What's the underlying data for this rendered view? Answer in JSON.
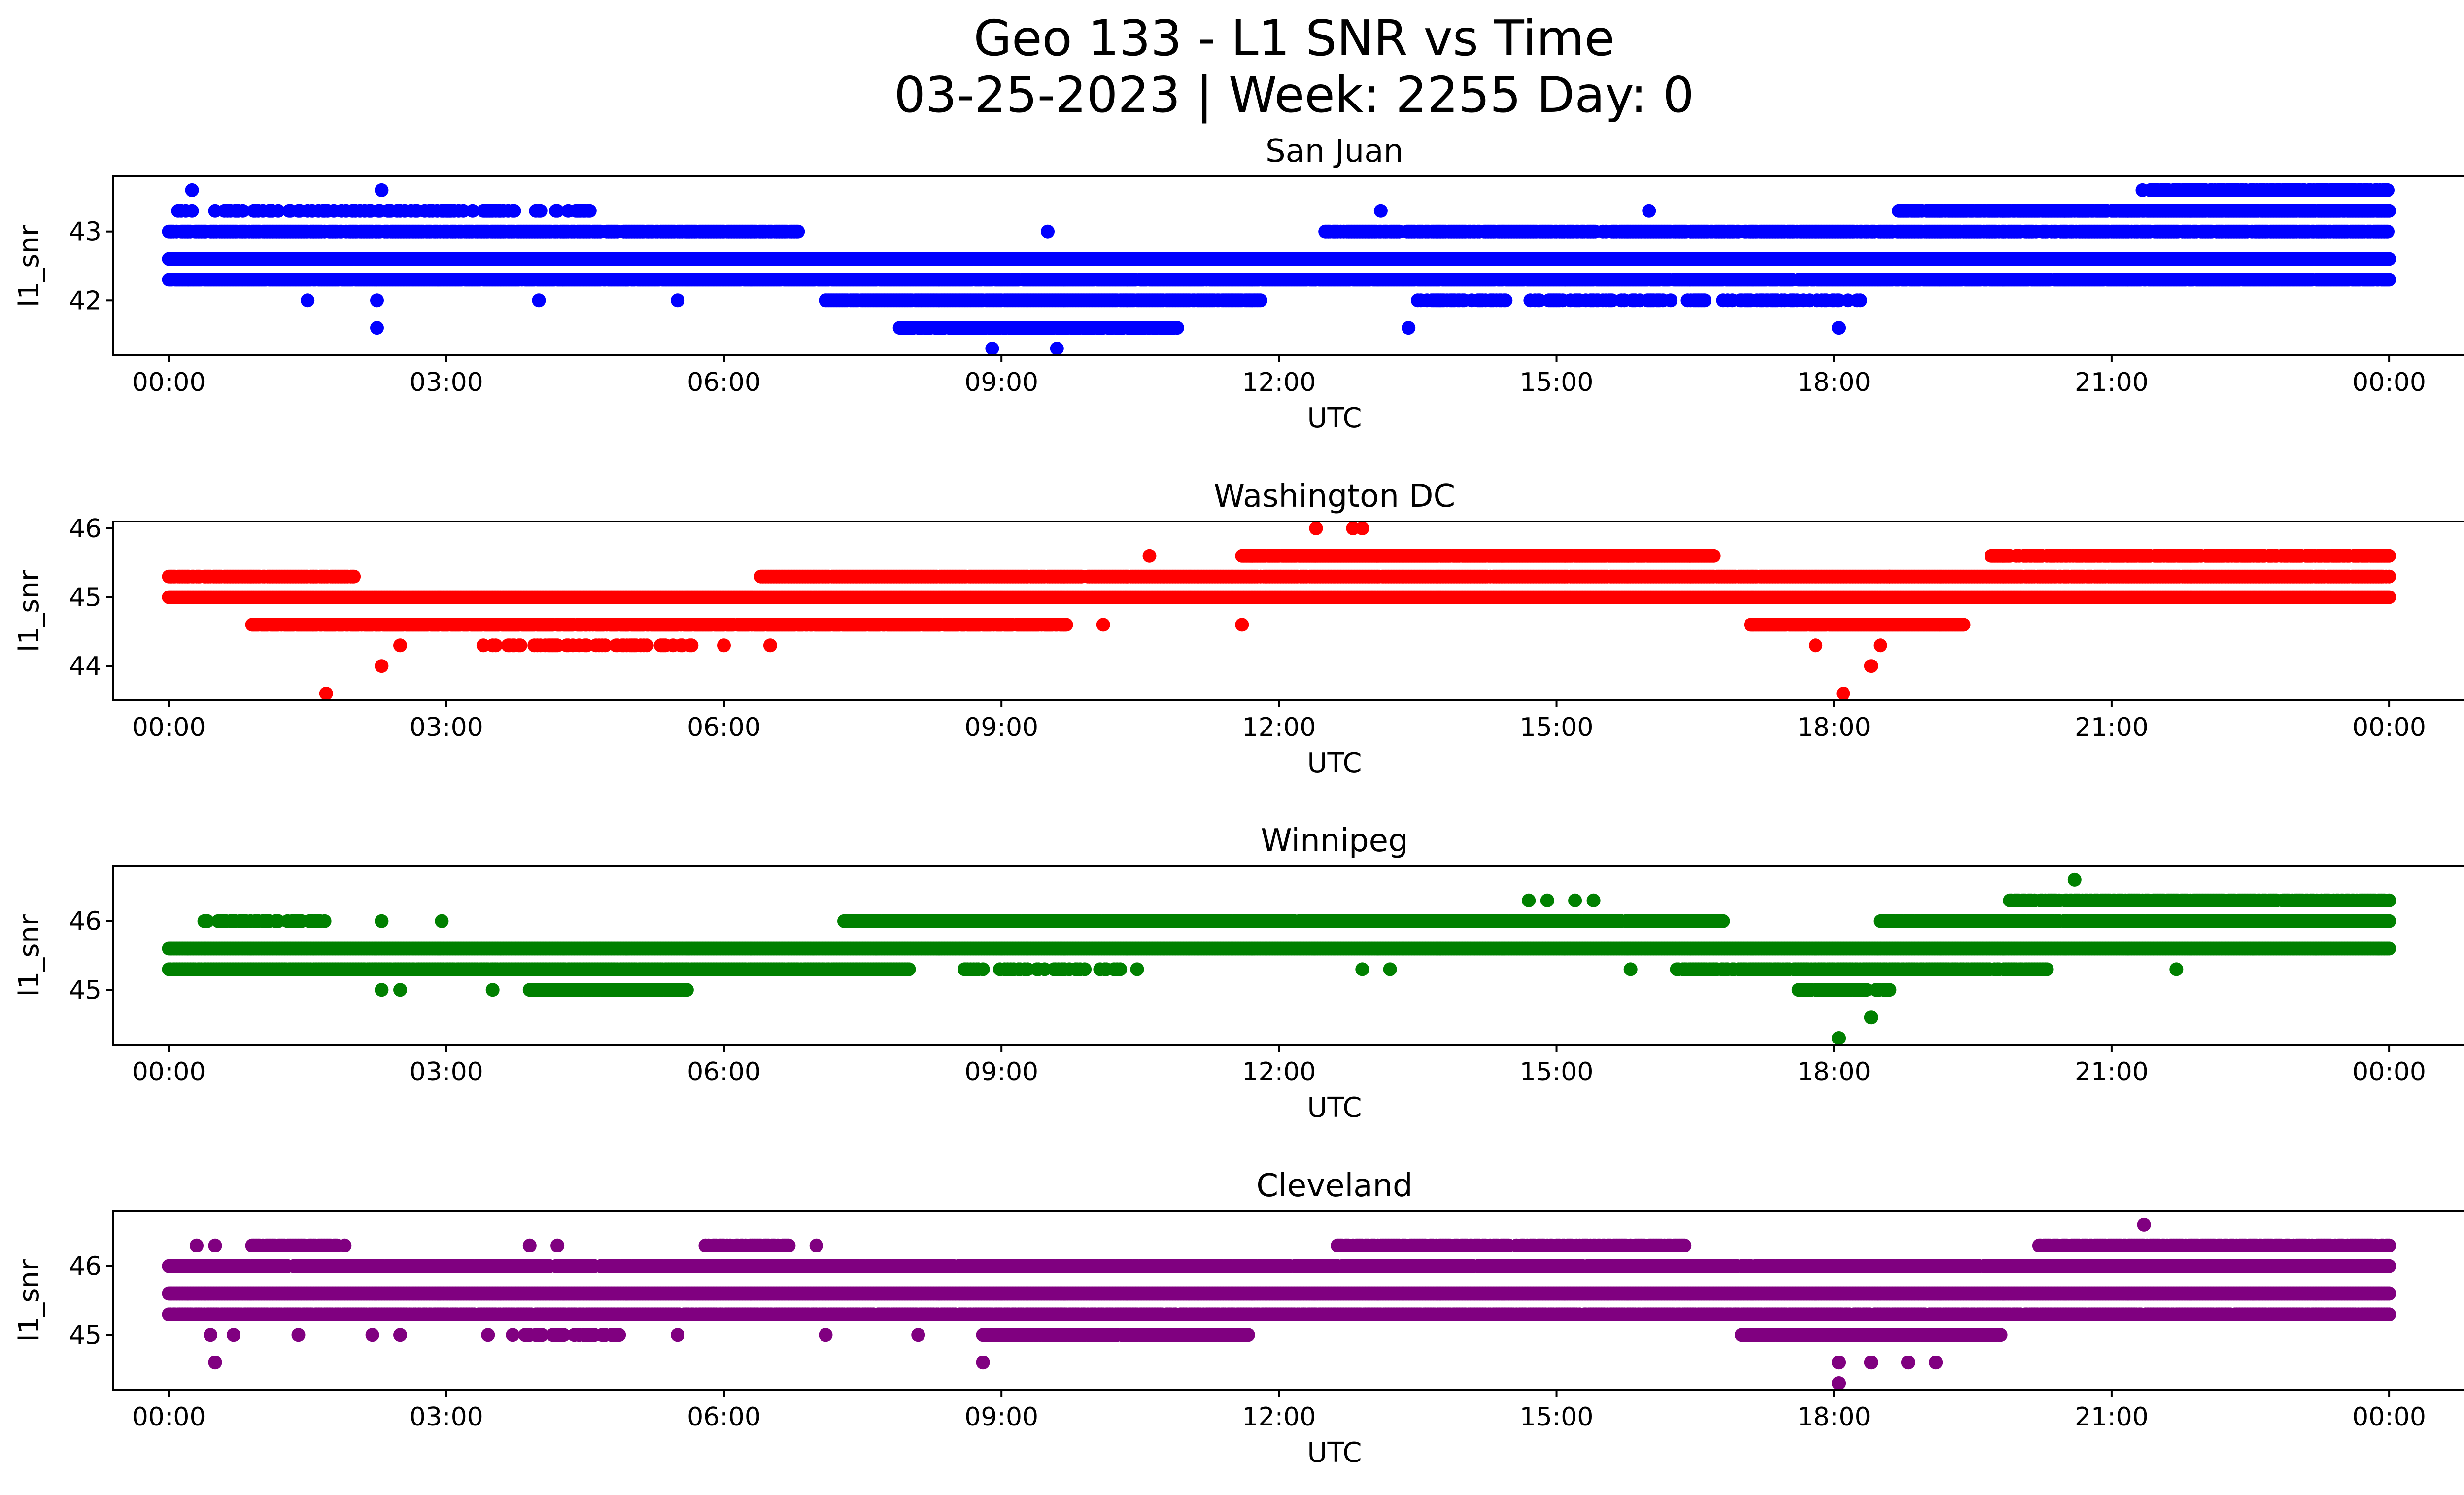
{
  "figure": {
    "title_line1": "Geo 133 - L1 SNR vs Time",
    "title_line2": "03-25-2023 | Week: 2255 Day: 0"
  },
  "chart_data": [
    {
      "type": "scatter",
      "title": "San Juan",
      "xlabel": "UTC",
      "ylabel": "l1_snr",
      "color": "#0000ff",
      "xlim_hours": [
        -0.6,
        25.8
      ],
      "ylim": [
        41.2,
        43.8
      ],
      "xticks": [
        0,
        3,
        6,
        9,
        12,
        15,
        18,
        21,
        24
      ],
      "xticklabels": [
        "00:00",
        "03:00",
        "06:00",
        "09:00",
        "12:00",
        "15:00",
        "18:00",
        "21:00",
        "00:00"
      ],
      "yticks": [
        42,
        43
      ],
      "yticklabels": [
        "42",
        "43"
      ],
      "bands": [
        {
          "y": 42.6,
          "from": 0.0,
          "to": 24.0,
          "density": 1.0
        },
        {
          "y": 42.3,
          "from": 0.0,
          "to": 24.0,
          "density": 0.95
        },
        {
          "y": 43.0,
          "from": 0.0,
          "to": 6.8,
          "density": 0.85
        },
        {
          "y": 43.0,
          "from": 12.5,
          "to": 24.0,
          "density": 0.85
        },
        {
          "y": 43.3,
          "from": 0.1,
          "to": 4.6,
          "density": 0.35
        },
        {
          "y": 43.3,
          "from": 18.7,
          "to": 24.0,
          "density": 0.9
        },
        {
          "y": 42.0,
          "from": 7.1,
          "to": 11.8,
          "density": 0.95
        },
        {
          "y": 42.0,
          "from": 13.5,
          "to": 18.3,
          "density": 0.45
        },
        {
          "y": 41.6,
          "from": 7.9,
          "to": 10.9,
          "density": 0.9
        },
        {
          "y": 43.6,
          "from": 21.3,
          "to": 24.0,
          "density": 0.8
        }
      ],
      "points": [
        {
          "x": 0.25,
          "y": 43.6
        },
        {
          "x": 2.3,
          "y": 43.6
        },
        {
          "x": 1.5,
          "y": 42.0
        },
        {
          "x": 2.25,
          "y": 42.0
        },
        {
          "x": 2.25,
          "y": 41.6
        },
        {
          "x": 4.0,
          "y": 42.0
        },
        {
          "x": 5.5,
          "y": 42.0
        },
        {
          "x": 8.9,
          "y": 41.3
        },
        {
          "x": 9.6,
          "y": 41.3
        },
        {
          "x": 9.5,
          "y": 43.0
        },
        {
          "x": 13.4,
          "y": 41.6
        },
        {
          "x": 13.1,
          "y": 43.3
        },
        {
          "x": 16.0,
          "y": 43.3
        },
        {
          "x": 18.05,
          "y": 41.6
        },
        {
          "x": 21.35,
          "y": 42.6
        },
        {
          "x": 22.9,
          "y": 42.6
        },
        {
          "x": 23.4,
          "y": 42.6
        },
        {
          "x": 23.9,
          "y": 43.6
        }
      ]
    },
    {
      "type": "scatter",
      "title": "Washington DC",
      "xlabel": "UTC",
      "ylabel": "l1_snr",
      "color": "#ff0000",
      "xlim_hours": [
        -0.6,
        25.8
      ],
      "ylim": [
        43.5,
        46.1
      ],
      "xticks": [
        0,
        3,
        6,
        9,
        12,
        15,
        18,
        21,
        24
      ],
      "xticklabels": [
        "00:00",
        "03:00",
        "06:00",
        "09:00",
        "12:00",
        "15:00",
        "18:00",
        "21:00",
        "00:00"
      ],
      "yticks": [
        44,
        45,
        46
      ],
      "yticklabels": [
        "44",
        "45",
        "46"
      ],
      "bands": [
        {
          "y": 45.0,
          "from": 0.0,
          "to": 24.0,
          "density": 1.0
        },
        {
          "y": 45.3,
          "from": 0.0,
          "to": 2.0,
          "density": 0.9
        },
        {
          "y": 45.3,
          "from": 6.4,
          "to": 24.0,
          "density": 0.95
        },
        {
          "y": 44.6,
          "from": 0.9,
          "to": 9.7,
          "density": 0.85
        },
        {
          "y": 44.6,
          "from": 17.1,
          "to": 19.4,
          "density": 0.95
        },
        {
          "y": 45.6,
          "from": 11.6,
          "to": 16.7,
          "density": 0.95
        },
        {
          "y": 45.6,
          "from": 19.7,
          "to": 24.0,
          "density": 0.75
        },
        {
          "y": 44.3,
          "from": 3.4,
          "to": 5.7,
          "density": 0.35
        }
      ],
      "points": [
        {
          "x": 1.7,
          "y": 43.6
        },
        {
          "x": 2.3,
          "y": 44.0
        },
        {
          "x": 2.5,
          "y": 44.3
        },
        {
          "x": 6.0,
          "y": 44.3
        },
        {
          "x": 6.5,
          "y": 44.3
        },
        {
          "x": 10.1,
          "y": 44.6
        },
        {
          "x": 10.6,
          "y": 45.6
        },
        {
          "x": 11.6,
          "y": 44.6
        },
        {
          "x": 12.4,
          "y": 46.0
        },
        {
          "x": 12.8,
          "y": 46.0
        },
        {
          "x": 12.9,
          "y": 46.0
        },
        {
          "x": 17.8,
          "y": 44.3
        },
        {
          "x": 18.1,
          "y": 43.6
        },
        {
          "x": 18.4,
          "y": 44.0
        },
        {
          "x": 18.5,
          "y": 44.3
        },
        {
          "x": 18.6,
          "y": 45.3
        }
      ]
    },
    {
      "type": "scatter",
      "title": "Winnipeg",
      "xlabel": "UTC",
      "ylabel": "l1_snr",
      "color": "#008000",
      "xlim_hours": [
        -0.6,
        25.8
      ],
      "ylim": [
        44.2,
        46.8
      ],
      "xticks": [
        0,
        3,
        6,
        9,
        12,
        15,
        18,
        21,
        24
      ],
      "xticklabels": [
        "00:00",
        "03:00",
        "06:00",
        "09:00",
        "12:00",
        "15:00",
        "18:00",
        "21:00",
        "00:00"
      ],
      "yticks": [
        45,
        46
      ],
      "yticklabels": [
        "45",
        "46"
      ],
      "bands": [
        {
          "y": 45.6,
          "from": 0.0,
          "to": 24.0,
          "density": 1.0
        },
        {
          "y": 45.3,
          "from": 0.0,
          "to": 8.0,
          "density": 0.95
        },
        {
          "y": 45.3,
          "from": 16.3,
          "to": 20.3,
          "density": 0.8
        },
        {
          "y": 45.3,
          "from": 8.6,
          "to": 10.5,
          "density": 0.35
        },
        {
          "y": 46.0,
          "from": 7.3,
          "to": 16.8,
          "density": 0.95
        },
        {
          "y": 46.0,
          "from": 18.5,
          "to": 24.0,
          "density": 0.95
        },
        {
          "y": 46.0,
          "from": 0.3,
          "to": 1.8,
          "density": 0.4
        },
        {
          "y": 45.0,
          "from": 3.9,
          "to": 5.6,
          "density": 0.85
        },
        {
          "y": 45.0,
          "from": 17.6,
          "to": 18.6,
          "density": 0.8
        },
        {
          "y": 46.3,
          "from": 19.9,
          "to": 24.0,
          "density": 0.75
        }
      ],
      "points": [
        {
          "x": 2.3,
          "y": 45.0
        },
        {
          "x": 2.5,
          "y": 45.0
        },
        {
          "x": 2.3,
          "y": 46.0
        },
        {
          "x": 2.95,
          "y": 46.0
        },
        {
          "x": 3.5,
          "y": 45.0
        },
        {
          "x": 12.9,
          "y": 45.3
        },
        {
          "x": 13.2,
          "y": 45.3
        },
        {
          "x": 14.7,
          "y": 46.3
        },
        {
          "x": 14.9,
          "y": 46.3
        },
        {
          "x": 15.2,
          "y": 46.3
        },
        {
          "x": 15.4,
          "y": 46.3
        },
        {
          "x": 15.8,
          "y": 45.3
        },
        {
          "x": 18.05,
          "y": 44.3
        },
        {
          "x": 18.4,
          "y": 44.6
        },
        {
          "x": 20.6,
          "y": 46.6
        },
        {
          "x": 21.7,
          "y": 45.3
        }
      ]
    },
    {
      "type": "scatter",
      "title": "Cleveland",
      "xlabel": "UTC",
      "ylabel": "l1_snr",
      "color": "#800080",
      "xlim_hours": [
        -0.6,
        25.8
      ],
      "ylim": [
        44.2,
        46.8
      ],
      "xticks": [
        0,
        3,
        6,
        9,
        12,
        15,
        18,
        21,
        24
      ],
      "xticklabels": [
        "00:00",
        "03:00",
        "06:00",
        "09:00",
        "12:00",
        "15:00",
        "18:00",
        "21:00",
        "00:00"
      ],
      "yticks": [
        45,
        46
      ],
      "yticklabels": [
        "45",
        "46"
      ],
      "bands": [
        {
          "y": 45.6,
          "from": 0.0,
          "to": 24.0,
          "density": 1.0
        },
        {
          "y": 46.0,
          "from": 0.0,
          "to": 24.0,
          "density": 0.9
        },
        {
          "y": 45.3,
          "from": 0.0,
          "to": 24.0,
          "density": 0.9
        },
        {
          "y": 46.3,
          "from": 0.9,
          "to": 1.9,
          "density": 0.7
        },
        {
          "y": 46.3,
          "from": 12.6,
          "to": 16.4,
          "density": 0.75
        },
        {
          "y": 46.3,
          "from": 20.2,
          "to": 24.0,
          "density": 0.75
        },
        {
          "y": 46.3,
          "from": 5.8,
          "to": 6.7,
          "density": 0.6
        },
        {
          "y": 45.0,
          "from": 8.8,
          "to": 11.7,
          "density": 0.9
        },
        {
          "y": 45.0,
          "from": 17.0,
          "to": 19.8,
          "density": 0.9
        },
        {
          "y": 45.0,
          "from": 3.4,
          "to": 4.9,
          "density": 0.4
        }
      ],
      "points": [
        {
          "x": 0.5,
          "y": 44.6
        },
        {
          "x": 0.45,
          "y": 45.0
        },
        {
          "x": 0.7,
          "y": 45.0
        },
        {
          "x": 1.4,
          "y": 45.0
        },
        {
          "x": 0.3,
          "y": 46.3
        },
        {
          "x": 0.5,
          "y": 46.3
        },
        {
          "x": 2.2,
          "y": 45.0
        },
        {
          "x": 2.5,
          "y": 45.0
        },
        {
          "x": 5.5,
          "y": 45.0
        },
        {
          "x": 7.1,
          "y": 45.0
        },
        {
          "x": 7.0,
          "y": 46.3
        },
        {
          "x": 3.9,
          "y": 46.3
        },
        {
          "x": 4.2,
          "y": 46.3
        },
        {
          "x": 8.8,
          "y": 44.6
        },
        {
          "x": 8.1,
          "y": 45.0
        },
        {
          "x": 18.05,
          "y": 44.3
        },
        {
          "x": 18.05,
          "y": 44.6
        },
        {
          "x": 18.4,
          "y": 44.6
        },
        {
          "x": 18.8,
          "y": 44.6
        },
        {
          "x": 19.1,
          "y": 44.6
        },
        {
          "x": 18.7,
          "y": 46.0
        },
        {
          "x": 21.35,
          "y": 46.6
        }
      ]
    }
  ]
}
